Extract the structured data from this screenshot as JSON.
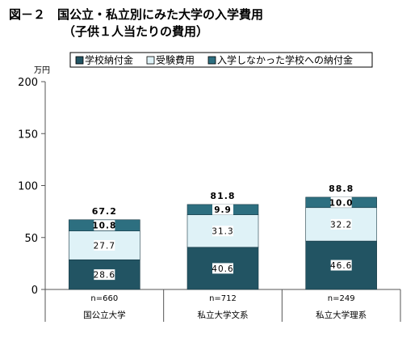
{
  "title": "図－２　国公立・私立別にみた大学の入学費用",
  "subtitle": "（子供１人当たりの費用）",
  "colors": {
    "series": [
      "#225463",
      "#dff2f7",
      "#2d6f80"
    ],
    "axis": "#555555",
    "text": "#000000"
  },
  "chart_data": {
    "type": "bar",
    "stacked": true,
    "categories": [
      "国公立大学",
      "私立大学文系",
      "私立大学理系"
    ],
    "sample_sizes": [
      "n=660",
      "n=712",
      "n=249"
    ],
    "series": [
      {
        "name": "学校納付金",
        "values": [
          28.6,
          40.6,
          46.6
        ]
      },
      {
        "name": "受験費用",
        "values": [
          27.7,
          31.3,
          32.2
        ]
      },
      {
        "name": "入学しなかった学校への納付金",
        "values": [
          10.8,
          9.9,
          10.0
        ]
      }
    ],
    "value_labels": [
      [
        "28.6",
        "40.6",
        "46.6"
      ],
      [
        "27.7",
        "31.3",
        "32.2"
      ],
      [
        "10.8",
        "9.9",
        "10.0"
      ]
    ],
    "totals": [
      67.2,
      81.8,
      88.8
    ],
    "total_labels": [
      "67.2",
      "81.8",
      "88.8"
    ],
    "y_unit": "万円",
    "yticks": [
      0,
      50,
      100,
      150,
      200
    ],
    "ylim": [
      0,
      200
    ],
    "grid": false,
    "legend_position": "top-right"
  }
}
